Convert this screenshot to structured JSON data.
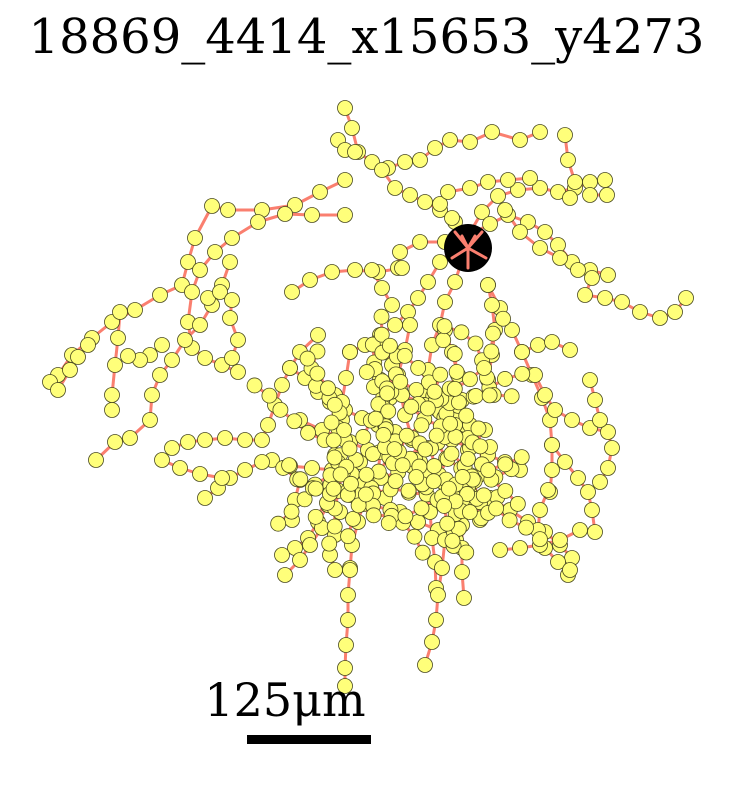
{
  "title": "18869_4414_x15653_y4273",
  "scale_bar": {
    "value": "125",
    "unit": "μm",
    "label": "125μm"
  },
  "colors": {
    "background": "#ffffff",
    "edge": "#fa7f6f",
    "node_fill": "#ffff7a",
    "node_stroke": "#4a4a20",
    "soma": "#000000"
  },
  "legend": []
}
